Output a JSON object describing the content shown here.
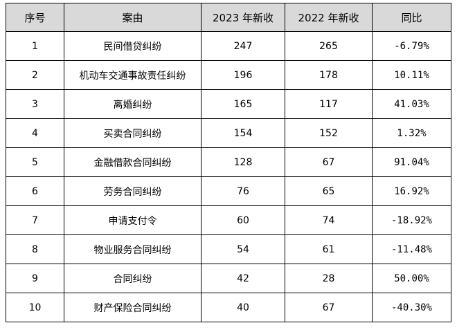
{
  "table": {
    "headers": {
      "index": "序号",
      "cause": "案由",
      "new_2023": "2023 年新收",
      "new_2022": "2022 年新收",
      "yoy": "同比"
    },
    "rows": [
      {
        "index": "1",
        "cause": "民间借贷纠纷",
        "new_2023": "247",
        "new_2022": "265",
        "yoy": "-6.79%"
      },
      {
        "index": "2",
        "cause": "机动车交通事故责任纠纷",
        "new_2023": "196",
        "new_2022": "178",
        "yoy": "10.11%"
      },
      {
        "index": "3",
        "cause": "离婚纠纷",
        "new_2023": "165",
        "new_2022": "117",
        "yoy": "41.03%"
      },
      {
        "index": "4",
        "cause": "买卖合同纠纷",
        "new_2023": "154",
        "new_2022": "152",
        "yoy": "1.32%"
      },
      {
        "index": "5",
        "cause": "金融借款合同纠纷",
        "new_2023": "128",
        "new_2022": "67",
        "yoy": "91.04%"
      },
      {
        "index": "6",
        "cause": "劳务合同纠纷",
        "new_2023": "76",
        "new_2022": "65",
        "yoy": "16.92%"
      },
      {
        "index": "7",
        "cause": "申请支付令",
        "new_2023": "60",
        "new_2022": "74",
        "yoy": "-18.92%"
      },
      {
        "index": "8",
        "cause": "物业服务合同纠纷",
        "new_2023": "54",
        "new_2022": "61",
        "yoy": "-11.48%"
      },
      {
        "index": "9",
        "cause": "合同纠纷",
        "new_2023": "42",
        "new_2022": "28",
        "yoy": "50.00%"
      },
      {
        "index": "10",
        "cause": "财产保险合同纠纷",
        "new_2023": "40",
        "new_2022": "67",
        "yoy": "-40.30%"
      }
    ]
  },
  "colors": {
    "header_bg": "#d9d9d9",
    "border": "#000000",
    "text": "#000000"
  }
}
